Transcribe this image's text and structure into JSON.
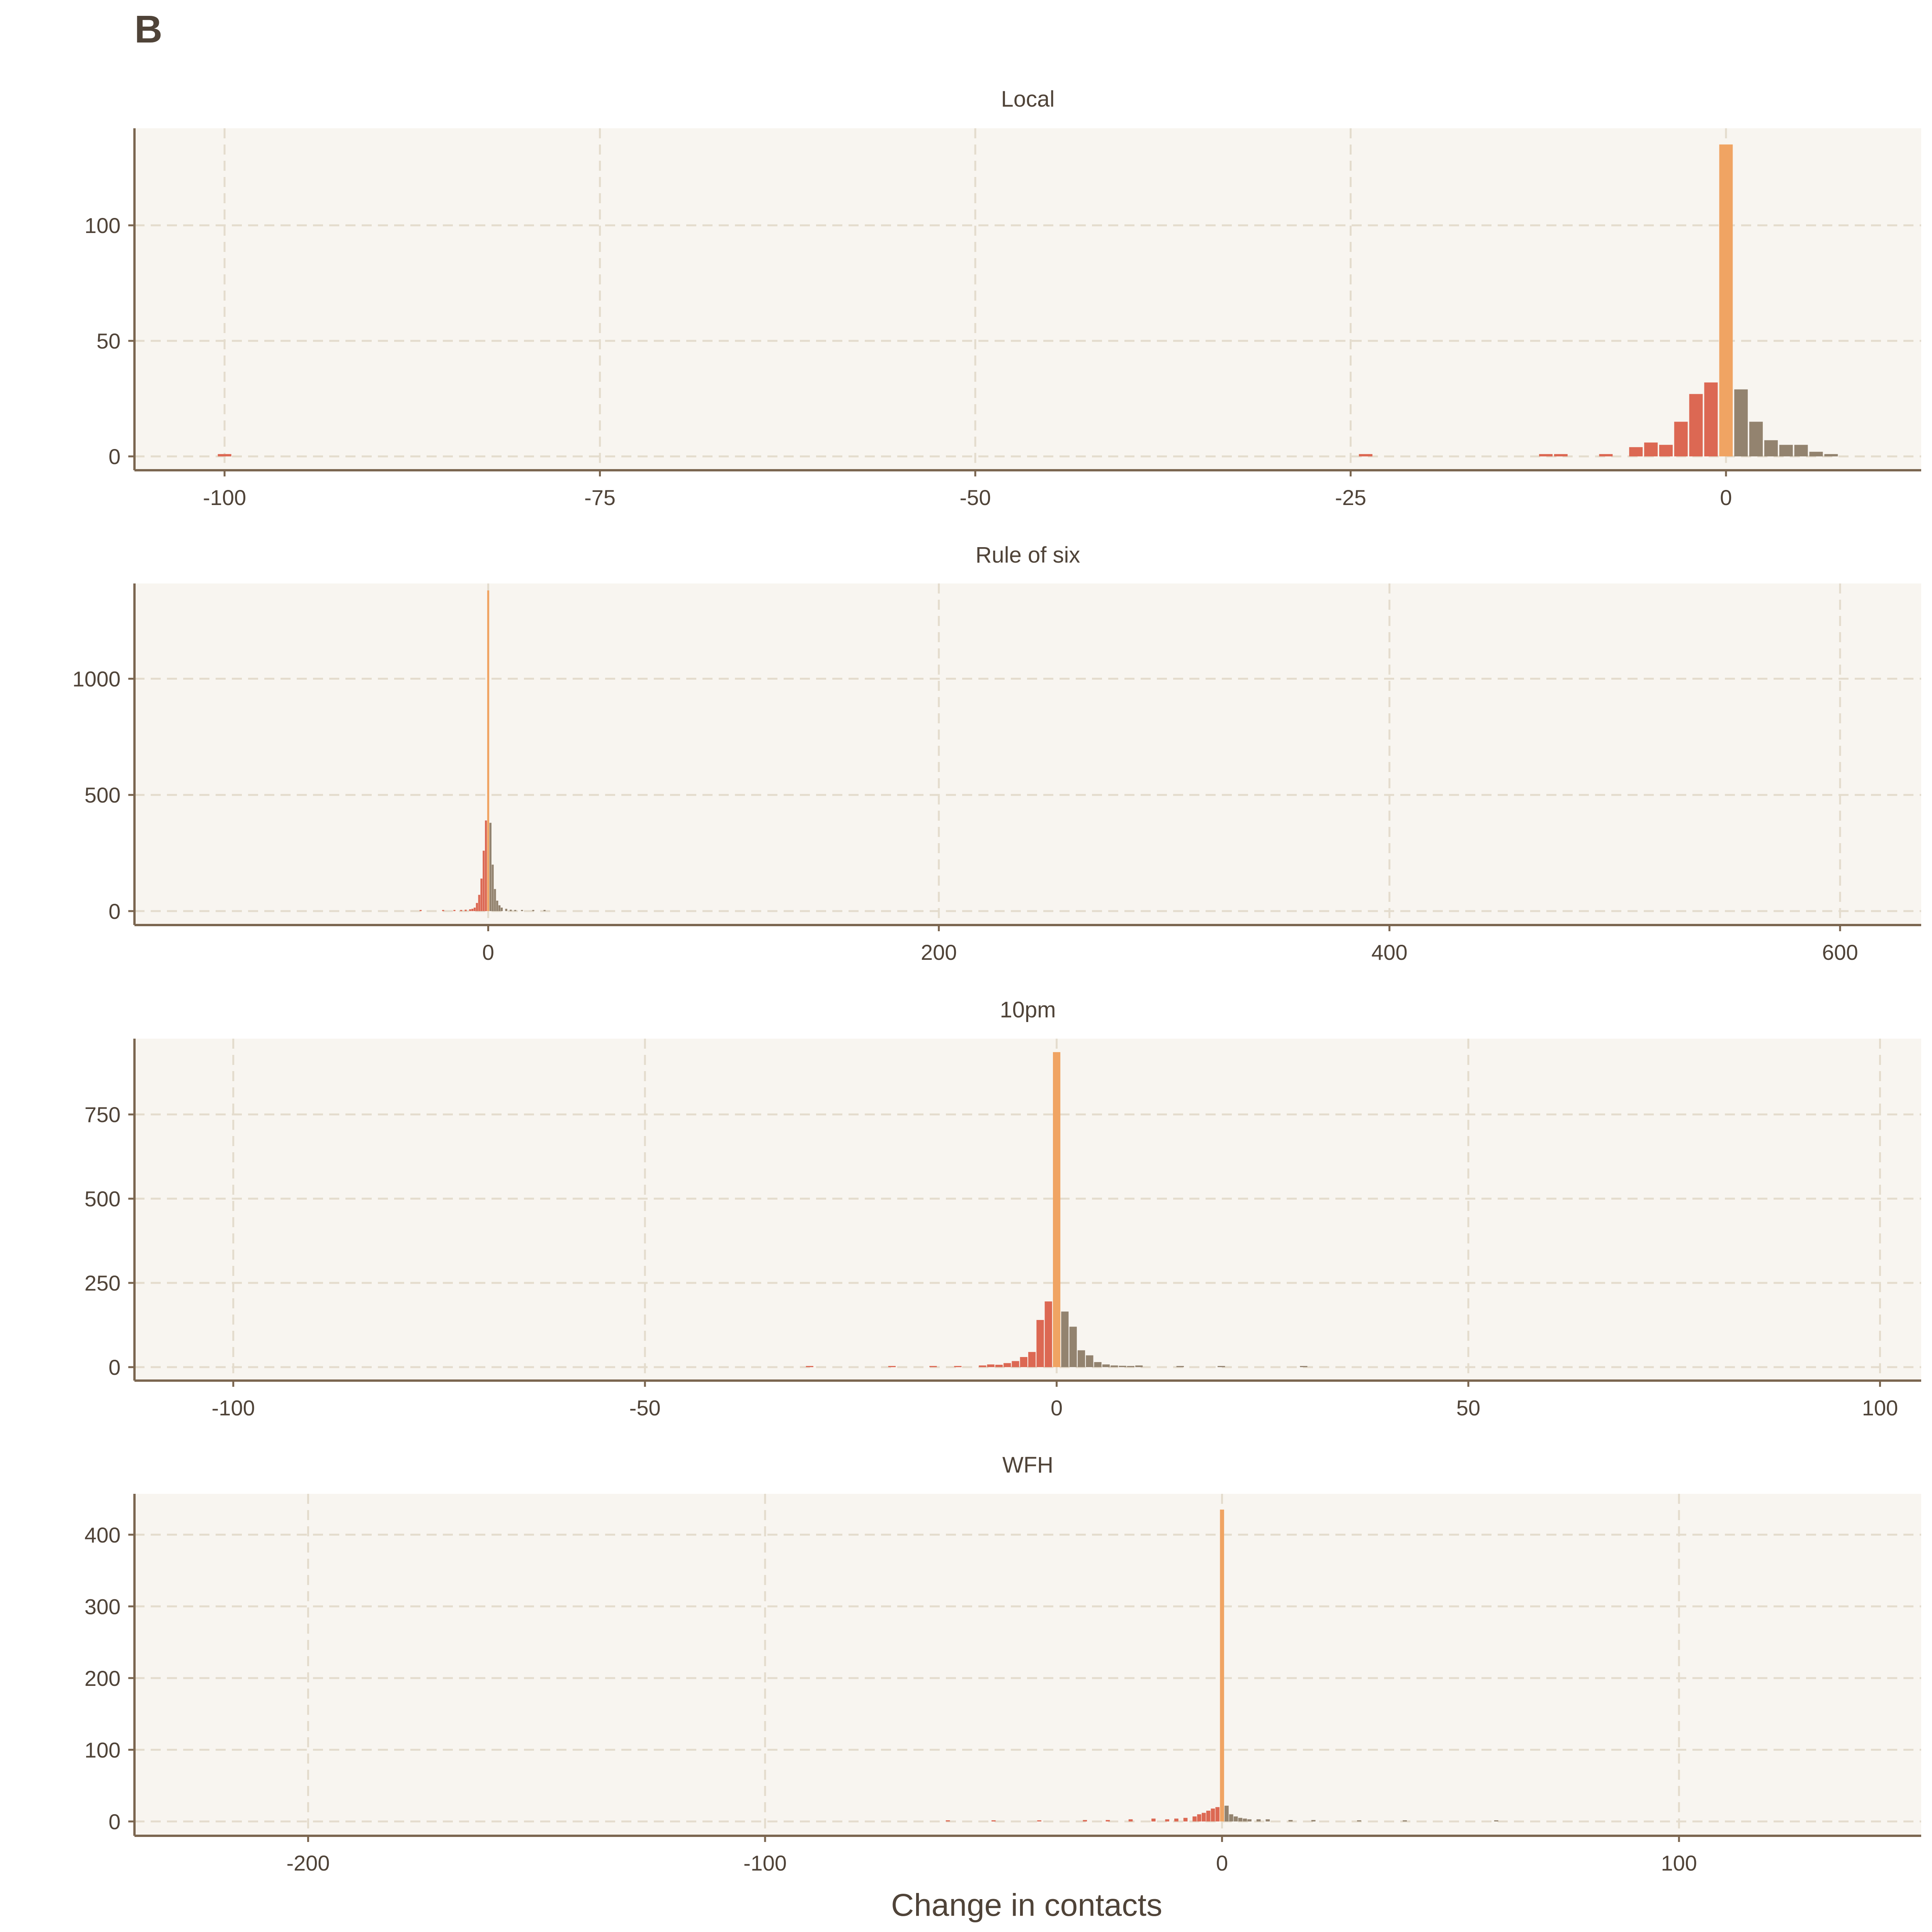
{
  "figure": {
    "panel_tag": "B",
    "xlabel": "Change in contacts"
  },
  "colors": {
    "negative": "#dc6853",
    "zero": "#f0a463",
    "positive": "#93836f",
    "panel_background": "#f8f5f0",
    "grid": "#e4dccd",
    "axis": "#7b6650",
    "text": "#4f4338"
  },
  "chart_data": [
    {
      "type": "bar",
      "title": "Local",
      "xlabel": "Change in contacts",
      "ylabel": "",
      "xlim": [
        -106,
        13
      ],
      "ylim": [
        -6,
        142
      ],
      "xticks": [
        -100,
        -75,
        -50,
        -25,
        0
      ],
      "xtick_labels": [
        "-100",
        "-75",
        "-50",
        "-25",
        "0"
      ],
      "yticks": [
        0,
        50,
        100
      ],
      "ytick_labels": [
        "0",
        "50",
        "100"
      ],
      "grid": true,
      "bin_width": 1,
      "bars": [
        {
          "x": -100,
          "y": 1
        },
        {
          "x": -24,
          "y": 1
        },
        {
          "x": -12,
          "y": 1
        },
        {
          "x": -11,
          "y": 1
        },
        {
          "x": -8,
          "y": 1
        },
        {
          "x": -6,
          "y": 4
        },
        {
          "x": -5,
          "y": 6
        },
        {
          "x": -4,
          "y": 5
        },
        {
          "x": -3,
          "y": 15
        },
        {
          "x": -2,
          "y": 27
        },
        {
          "x": -1,
          "y": 32
        },
        {
          "x": 0,
          "y": 135
        },
        {
          "x": 1,
          "y": 29
        },
        {
          "x": 2,
          "y": 15
        },
        {
          "x": 3,
          "y": 7
        },
        {
          "x": 4,
          "y": 5
        },
        {
          "x": 5,
          "y": 5
        },
        {
          "x": 6,
          "y": 2
        },
        {
          "x": 7,
          "y": 1
        }
      ]
    },
    {
      "type": "bar",
      "title": "Rule of six",
      "xlabel": "Change in contacts",
      "ylabel": "",
      "xlim": [
        -157,
        636
      ],
      "ylim": [
        -60,
        1410
      ],
      "xticks": [
        0,
        200,
        400,
        600
      ],
      "xtick_labels": [
        "0",
        "200",
        "400",
        "600"
      ],
      "yticks": [
        0,
        500,
        1000
      ],
      "ytick_labels": [
        "0",
        "500",
        "1000"
      ],
      "grid": true,
      "bin_width": 1,
      "bars": [
        {
          "x": -30,
          "y": 2
        },
        {
          "x": -20,
          "y": 3
        },
        {
          "x": -15,
          "y": 4
        },
        {
          "x": -12,
          "y": 5
        },
        {
          "x": -10,
          "y": 6
        },
        {
          "x": -8,
          "y": 8
        },
        {
          "x": -7,
          "y": 10
        },
        {
          "x": -6,
          "y": 15
        },
        {
          "x": -5,
          "y": 35
        },
        {
          "x": -4,
          "y": 70
        },
        {
          "x": -3,
          "y": 140
        },
        {
          "x": -2,
          "y": 260
        },
        {
          "x": -1,
          "y": 390
        },
        {
          "x": 0,
          "y": 1380
        },
        {
          "x": 1,
          "y": 380
        },
        {
          "x": 2,
          "y": 200
        },
        {
          "x": 3,
          "y": 95
        },
        {
          "x": 4,
          "y": 45
        },
        {
          "x": 5,
          "y": 25
        },
        {
          "x": 6,
          "y": 15
        },
        {
          "x": 8,
          "y": 10
        },
        {
          "x": 10,
          "y": 6
        },
        {
          "x": 12,
          "y": 4
        },
        {
          "x": 15,
          "y": 3
        },
        {
          "x": 20,
          "y": 2
        },
        {
          "x": 25,
          "y": 1
        }
      ]
    },
    {
      "type": "bar",
      "title": "10pm",
      "xlabel": "Change in contacts",
      "ylabel": "",
      "xlim": [
        -112,
        105
      ],
      "ylim": [
        -40,
        975
      ],
      "xticks": [
        -100,
        -50,
        0,
        50,
        100
      ],
      "xtick_labels": [
        "-100",
        "-50",
        "0",
        "50",
        "100"
      ],
      "yticks": [
        0,
        250,
        500,
        750
      ],
      "ytick_labels": [
        "0",
        "250",
        "500",
        "750"
      ],
      "grid": true,
      "bin_width": 1,
      "bars": [
        {
          "x": -30,
          "y": 1
        },
        {
          "x": -20,
          "y": 1
        },
        {
          "x": -15,
          "y": 2
        },
        {
          "x": -12,
          "y": 2
        },
        {
          "x": -9,
          "y": 5
        },
        {
          "x": -8,
          "y": 8
        },
        {
          "x": -7,
          "y": 7
        },
        {
          "x": -6,
          "y": 12
        },
        {
          "x": -5,
          "y": 18
        },
        {
          "x": -4,
          "y": 30
        },
        {
          "x": -3,
          "y": 45
        },
        {
          "x": -2,
          "y": 140
        },
        {
          "x": -1,
          "y": 195
        },
        {
          "x": 0,
          "y": 935
        },
        {
          "x": 1,
          "y": 165
        },
        {
          "x": 2,
          "y": 120
        },
        {
          "x": 3,
          "y": 50
        },
        {
          "x": 4,
          "y": 35
        },
        {
          "x": 5,
          "y": 15
        },
        {
          "x": 6,
          "y": 8
        },
        {
          "x": 7,
          "y": 5
        },
        {
          "x": 8,
          "y": 4
        },
        {
          "x": 9,
          "y": 3
        },
        {
          "x": 10,
          "y": 5
        },
        {
          "x": 15,
          "y": 2
        },
        {
          "x": 20,
          "y": 1
        },
        {
          "x": 30,
          "y": 1
        }
      ]
    },
    {
      "type": "bar",
      "title": "WFH",
      "xlabel": "Change in contacts",
      "ylabel": "",
      "xlim": [
        -238,
        153
      ],
      "ylim": [
        -20,
        457
      ],
      "xticks": [
        -200,
        -100,
        0,
        100
      ],
      "xtick_labels": [
        "-200",
        "-100",
        "0",
        "100"
      ],
      "yticks": [
        0,
        100,
        200,
        300,
        400
      ],
      "ytick_labels": [
        "0",
        "100",
        "200",
        "300",
        "400"
      ],
      "grid": true,
      "bin_width": 1,
      "bars": [
        {
          "x": -60,
          "y": 1
        },
        {
          "x": -50,
          "y": 1
        },
        {
          "x": -40,
          "y": 1
        },
        {
          "x": -30,
          "y": 2
        },
        {
          "x": -25,
          "y": 2
        },
        {
          "x": -20,
          "y": 3
        },
        {
          "x": -15,
          "y": 4
        },
        {
          "x": -12,
          "y": 3
        },
        {
          "x": -10,
          "y": 4
        },
        {
          "x": -8,
          "y": 5
        },
        {
          "x": -6,
          "y": 7
        },
        {
          "x": -5,
          "y": 10
        },
        {
          "x": -4,
          "y": 12
        },
        {
          "x": -3,
          "y": 15
        },
        {
          "x": -2,
          "y": 18
        },
        {
          "x": -1,
          "y": 20
        },
        {
          "x": 0,
          "y": 435
        },
        {
          "x": 1,
          "y": 22
        },
        {
          "x": 2,
          "y": 10
        },
        {
          "x": 3,
          "y": 7
        },
        {
          "x": 4,
          "y": 5
        },
        {
          "x": 5,
          "y": 4
        },
        {
          "x": 6,
          "y": 3
        },
        {
          "x": 8,
          "y": 3
        },
        {
          "x": 10,
          "y": 3
        },
        {
          "x": 15,
          "y": 2
        },
        {
          "x": 20,
          "y": 2
        },
        {
          "x": 30,
          "y": 1
        },
        {
          "x": 40,
          "y": 1
        },
        {
          "x": 60,
          "y": 1
        }
      ]
    }
  ]
}
